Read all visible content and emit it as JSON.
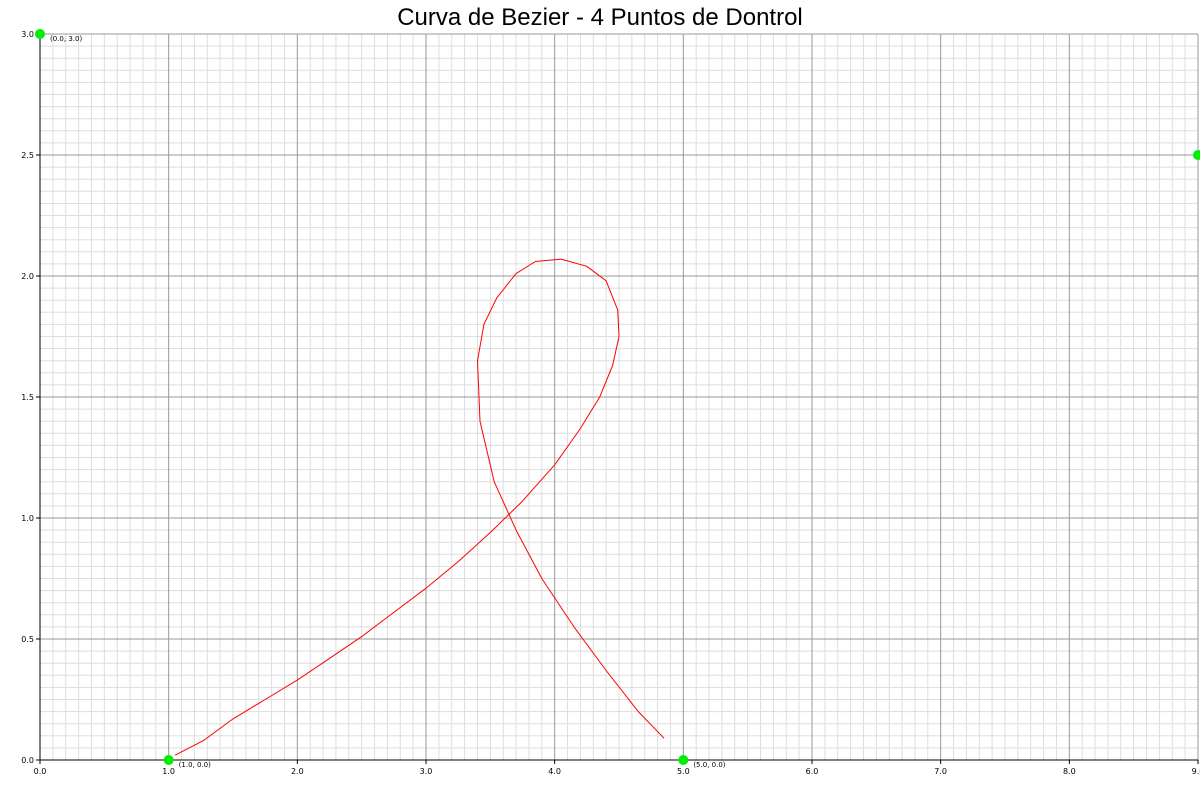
{
  "chart_data": {
    "type": "line",
    "title": "Curva de Bezier - 4 Puntos de Dontrol",
    "xlabel": "",
    "ylabel": "",
    "xlim": [
      0,
      9
    ],
    "ylim": [
      0,
      3
    ],
    "x_ticks": [
      "0.0",
      "1.0",
      "2.0",
      "3.0",
      "4.0",
      "5.0",
      "6.0",
      "7.0",
      "8.0",
      "9.0"
    ],
    "y_ticks": [
      "0.0",
      "0.5",
      "1.0",
      "1.5",
      "2.0",
      "2.5",
      "3.0"
    ],
    "grid": true,
    "colors": {
      "curve": "#ff0000",
      "control_points": "#00ee00",
      "major_grid": "#999999",
      "minor_grid": "#dddddd",
      "axis": "#000000"
    },
    "control_points": [
      {
        "x": 1.0,
        "y": 0.0,
        "label": "(1.0, 0.0)"
      },
      {
        "x": 0.0,
        "y": 3.0,
        "label": "(0.0, 3.0)"
      },
      {
        "x": 9.0,
        "y": 2.5,
        "label": ""
      },
      {
        "x": 5.0,
        "y": 0.0,
        "label": "(5.0, 0.0)"
      }
    ],
    "series": [
      {
        "values": [
          {
            "x": 1.05,
            "y": 0.02
          },
          {
            "x": 1.27,
            "y": 0.08
          },
          {
            "x": 1.5,
            "y": 0.17
          },
          {
            "x": 1.75,
            "y": 0.25
          },
          {
            "x": 2.0,
            "y": 0.33
          },
          {
            "x": 2.25,
            "y": 0.42
          },
          {
            "x": 2.5,
            "y": 0.51
          },
          {
            "x": 2.75,
            "y": 0.61
          },
          {
            "x": 3.0,
            "y": 0.71
          },
          {
            "x": 3.25,
            "y": 0.82
          },
          {
            "x": 3.5,
            "y": 0.94
          },
          {
            "x": 3.75,
            "y": 1.07
          },
          {
            "x": 4.0,
            "y": 1.22
          },
          {
            "x": 4.2,
            "y": 1.37
          },
          {
            "x": 4.35,
            "y": 1.5
          },
          {
            "x": 4.45,
            "y": 1.63
          },
          {
            "x": 4.5,
            "y": 1.75
          },
          {
            "x": 4.49,
            "y": 1.86
          },
          {
            "x": 4.4,
            "y": 1.98
          },
          {
            "x": 4.25,
            "y": 2.04
          },
          {
            "x": 4.05,
            "y": 2.07
          },
          {
            "x": 3.85,
            "y": 2.06
          },
          {
            "x": 3.7,
            "y": 2.01
          },
          {
            "x": 3.55,
            "y": 1.91
          },
          {
            "x": 3.45,
            "y": 1.8
          },
          {
            "x": 3.4,
            "y": 1.65
          },
          {
            "x": 3.42,
            "y": 1.4
          },
          {
            "x": 3.53,
            "y": 1.15
          },
          {
            "x": 3.7,
            "y": 0.95
          },
          {
            "x": 3.9,
            "y": 0.75
          },
          {
            "x": 4.15,
            "y": 0.55
          },
          {
            "x": 4.4,
            "y": 0.37
          },
          {
            "x": 4.65,
            "y": 0.2
          },
          {
            "x": 4.85,
            "y": 0.09
          }
        ]
      }
    ]
  }
}
